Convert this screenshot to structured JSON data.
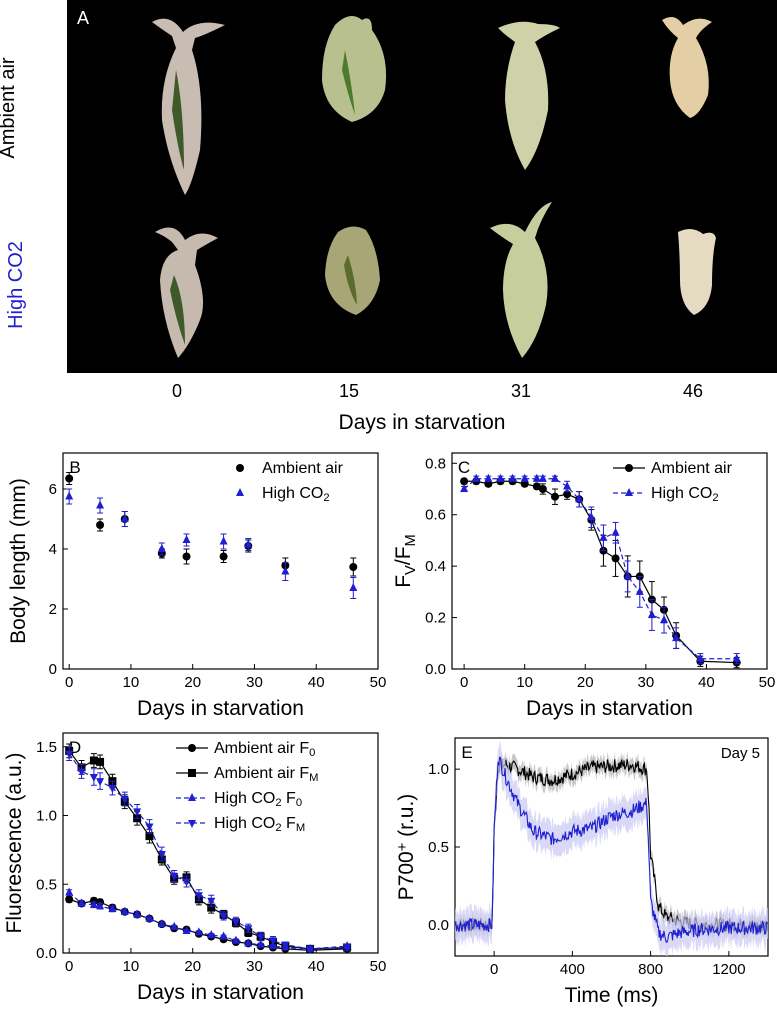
{
  "panel_a": {
    "label": "A",
    "row_labels": [
      "Ambient air",
      "High CO2"
    ],
    "row_label_colors": [
      "#000000",
      "#1f1fd1"
    ],
    "day_labels": [
      "0",
      "15",
      "31",
      "46"
    ],
    "xlabel": "Days in starvation"
  },
  "chart_data": [
    {
      "id": "B",
      "type": "scatter",
      "panel_label": "B",
      "xlabel": "Days in starvation",
      "ylabel": "Body length (mm)",
      "xlim": [
        -1,
        50
      ],
      "ylim": [
        0,
        7.2
      ],
      "xticks": [
        0,
        10,
        20,
        30,
        40,
        50
      ],
      "yticks": [
        0,
        2,
        4,
        6
      ],
      "legend": [
        {
          "label": "Ambient air",
          "marker": "circle",
          "color": "#000000"
        },
        {
          "label": "High CO2",
          "marker": "triangle-up",
          "color": "#1f1fd1"
        }
      ],
      "series": [
        {
          "name": "Ambient air",
          "marker": "circle",
          "color": "#000000",
          "x": [
            0,
            5,
            9,
            15,
            19,
            25,
            29,
            35,
            46
          ],
          "y": [
            6.35,
            4.8,
            5.0,
            3.85,
            3.75,
            3.75,
            4.1,
            3.45,
            3.4
          ],
          "err": [
            0.2,
            0.2,
            0.25,
            0.15,
            0.25,
            0.2,
            0.2,
            0.25,
            0.3
          ]
        },
        {
          "name": "High CO2",
          "marker": "triangle-up",
          "color": "#1f1fd1",
          "x": [
            0,
            5,
            9,
            15,
            19,
            25,
            29,
            35,
            46
          ],
          "y": [
            5.75,
            5.45,
            5.0,
            4.0,
            4.3,
            4.25,
            4.15,
            3.25,
            2.7
          ],
          "err": [
            0.25,
            0.25,
            0.25,
            0.2,
            0.2,
            0.25,
            0.2,
            0.3,
            0.35
          ]
        }
      ]
    },
    {
      "id": "C",
      "type": "line",
      "panel_label": "C",
      "xlabel": "Days in starvation",
      "ylabel": "FV/FM",
      "xlim": [
        -2,
        50
      ],
      "ylim": [
        0,
        0.84
      ],
      "xticks": [
        0,
        10,
        20,
        30,
        40,
        50
      ],
      "yticks": [
        0.0,
        0.2,
        0.4,
        0.6,
        0.8
      ],
      "ytick_labels": [
        "0.0",
        "0.2",
        "0.4",
        "0.6",
        "0.8"
      ],
      "legend": [
        {
          "label": "Ambient air",
          "marker": "circle",
          "color": "#000000",
          "dash": false
        },
        {
          "label": "High CO2",
          "marker": "triangle-up",
          "color": "#1f1fd1",
          "dash": true
        }
      ],
      "series": [
        {
          "name": "Ambient air",
          "marker": "circle",
          "color": "#000000",
          "dash": false,
          "x": [
            0,
            2,
            4,
            6,
            8,
            10,
            12,
            13,
            15,
            17,
            19,
            21,
            23,
            25,
            27,
            29,
            31,
            33,
            35,
            39,
            45
          ],
          "y": [
            0.73,
            0.73,
            0.72,
            0.73,
            0.73,
            0.72,
            0.71,
            0.7,
            0.67,
            0.68,
            0.66,
            0.58,
            0.46,
            0.43,
            0.36,
            0.36,
            0.27,
            0.23,
            0.13,
            0.03,
            0.025
          ],
          "err": [
            0.01,
            0.01,
            0.01,
            0.01,
            0.01,
            0.01,
            0.01,
            0.02,
            0.03,
            0.02,
            0.03,
            0.04,
            0.06,
            0.07,
            0.08,
            0.06,
            0.07,
            0.05,
            0.05,
            0.02,
            0.02
          ]
        },
        {
          "name": "High CO2",
          "marker": "triangle-up",
          "color": "#1f1fd1",
          "dash": true,
          "x": [
            0,
            2,
            4,
            6,
            8,
            10,
            12,
            13,
            15,
            17,
            19,
            21,
            23,
            25,
            27,
            29,
            31,
            33,
            35,
            39,
            45
          ],
          "y": [
            0.7,
            0.74,
            0.74,
            0.74,
            0.74,
            0.74,
            0.74,
            0.74,
            0.74,
            0.71,
            0.66,
            0.59,
            0.51,
            0.53,
            0.36,
            0.3,
            0.21,
            0.19,
            0.12,
            0.04,
            0.04
          ],
          "err": [
            0.01,
            0.01,
            0.01,
            0.01,
            0.01,
            0.01,
            0.01,
            0.01,
            0.01,
            0.02,
            0.03,
            0.04,
            0.05,
            0.04,
            0.06,
            0.06,
            0.06,
            0.05,
            0.04,
            0.02,
            0.02
          ]
        }
      ]
    },
    {
      "id": "D",
      "type": "line",
      "panel_label": "D",
      "xlabel": "Days in starvation",
      "ylabel": "Fluorescence (a.u.)",
      "xlim": [
        -1,
        50
      ],
      "ylim": [
        0,
        1.6
      ],
      "xticks": [
        0,
        10,
        20,
        30,
        40,
        50
      ],
      "yticks": [
        0.0,
        0.5,
        1.0,
        1.5
      ],
      "ytick_labels": [
        "0.0",
        "0.5",
        "1.0",
        "1.5"
      ],
      "legend": [
        {
          "label": "Ambient air F0",
          "marker": "circle",
          "color": "#000000",
          "dash": false
        },
        {
          "label": "Ambient air FM",
          "marker": "square",
          "color": "#000000",
          "dash": false
        },
        {
          "label": "High CO2 F0",
          "marker": "triangle-up",
          "color": "#1f1fd1",
          "dash": true
        },
        {
          "label": "High CO2 FM",
          "marker": "triangle-down",
          "color": "#1f1fd1",
          "dash": true
        }
      ],
      "series": [
        {
          "name": "Ambient air F0",
          "marker": "circle",
          "color": "#000000",
          "dash": false,
          "x": [
            0,
            2,
            4,
            5,
            7,
            9,
            11,
            13,
            15,
            17,
            19,
            21,
            23,
            25,
            27,
            29,
            31,
            33,
            35,
            39,
            45
          ],
          "y": [
            0.39,
            0.36,
            0.38,
            0.37,
            0.33,
            0.3,
            0.28,
            0.25,
            0.21,
            0.18,
            0.17,
            0.14,
            0.12,
            0.1,
            0.08,
            0.07,
            0.05,
            0.04,
            0.03,
            0.02,
            0.03
          ],
          "err": [
            0.02,
            0.02,
            0.02,
            0.02,
            0.02,
            0.02,
            0.02,
            0.01,
            0.01,
            0.01,
            0.01,
            0.01,
            0.01,
            0.01,
            0.01,
            0.01,
            0.01,
            0.01,
            0.01,
            0.01,
            0.01
          ]
        },
        {
          "name": "Ambient air FM",
          "marker": "square",
          "color": "#000000",
          "dash": false,
          "x": [
            0,
            2,
            4,
            5,
            7,
            9,
            11,
            13,
            15,
            17,
            19,
            21,
            23,
            25,
            27,
            29,
            31,
            33,
            35,
            39,
            45
          ],
          "y": [
            1.47,
            1.35,
            1.4,
            1.39,
            1.25,
            1.1,
            0.98,
            0.85,
            0.68,
            0.54,
            0.55,
            0.39,
            0.33,
            0.28,
            0.22,
            0.15,
            0.12,
            0.08,
            0.05,
            0.03,
            0.04
          ],
          "err": [
            0.05,
            0.05,
            0.05,
            0.05,
            0.05,
            0.05,
            0.05,
            0.05,
            0.04,
            0.04,
            0.04,
            0.04,
            0.04,
            0.03,
            0.03,
            0.03,
            0.03,
            0.03,
            0.02,
            0.02,
            0.02
          ]
        },
        {
          "name": "High CO2 F0",
          "marker": "triangle-up",
          "color": "#1f1fd1",
          "dash": true,
          "x": [
            0,
            2,
            4,
            5,
            7,
            9,
            11,
            13,
            15,
            17,
            19,
            21,
            23,
            25,
            27,
            29,
            31,
            33,
            35,
            39,
            45
          ],
          "y": [
            0.44,
            0.36,
            0.35,
            0.34,
            0.32,
            0.3,
            0.28,
            0.25,
            0.21,
            0.19,
            0.16,
            0.15,
            0.13,
            0.12,
            0.09,
            0.07,
            0.06,
            0.05,
            0.04,
            0.03,
            0.05
          ],
          "err": [
            0.02,
            0.02,
            0.02,
            0.02,
            0.02,
            0.02,
            0.02,
            0.01,
            0.01,
            0.01,
            0.01,
            0.01,
            0.01,
            0.01,
            0.01,
            0.01,
            0.01,
            0.01,
            0.01,
            0.01,
            0.01
          ]
        },
        {
          "name": "High CO2 FM",
          "marker": "triangle-down",
          "color": "#1f1fd1",
          "dash": true,
          "x": [
            0,
            2,
            4,
            5,
            7,
            9,
            11,
            13,
            15,
            17,
            19,
            21,
            23,
            25,
            27,
            29,
            31,
            33,
            35,
            39,
            45
          ],
          "y": [
            1.45,
            1.32,
            1.28,
            1.25,
            1.2,
            1.12,
            1.03,
            0.92,
            0.72,
            0.56,
            0.52,
            0.42,
            0.38,
            0.27,
            0.23,
            0.18,
            0.12,
            0.09,
            0.06,
            0.03,
            0.04
          ],
          "err": [
            0.05,
            0.05,
            0.06,
            0.06,
            0.05,
            0.05,
            0.05,
            0.05,
            0.05,
            0.04,
            0.04,
            0.04,
            0.04,
            0.03,
            0.03,
            0.03,
            0.03,
            0.03,
            0.02,
            0.02,
            0.02
          ]
        }
      ]
    },
    {
      "id": "E",
      "type": "line",
      "panel_label": "E",
      "annotation": "Day 5",
      "xlabel": "Time (ms)",
      "ylabel": "P700+ (r.u.)",
      "xlim": [
        -200,
        1400
      ],
      "ylim": [
        -0.2,
        1.2
      ],
      "xticks": [
        0,
        400,
        800,
        1200
      ],
      "yticks": [
        0.0,
        0.5,
        1.0
      ],
      "ytick_labels": [
        "0.0",
        "0.5",
        "1.0"
      ],
      "series": [
        {
          "name": "Ambient air",
          "color": "#000000",
          "band_color": "#b0b0b0",
          "x": [
            -200,
            -10,
            0,
            20,
            60,
            120,
            200,
            300,
            400,
            500,
            600,
            700,
            780,
            790,
            800,
            840,
            880,
            950,
            1050,
            1200,
            1400
          ],
          "y": [
            0.0,
            0.0,
            0.6,
            1.02,
            1.03,
            1.0,
            0.95,
            0.93,
            0.97,
            1.01,
            1.02,
            1.03,
            1.0,
            0.8,
            0.45,
            0.12,
            0.05,
            0.02,
            0.0,
            0.0,
            -0.01
          ],
          "band": 0.05
        },
        {
          "name": "High CO2",
          "color": "#1f1fd1",
          "band_color": "#c9c9f3",
          "x": [
            -200,
            -10,
            0,
            20,
            60,
            120,
            200,
            300,
            400,
            500,
            600,
            700,
            780,
            790,
            800,
            840,
            880,
            950,
            1050,
            1200,
            1400
          ],
          "y": [
            0.0,
            0.0,
            0.6,
            1.08,
            0.95,
            0.78,
            0.6,
            0.55,
            0.6,
            0.62,
            0.7,
            0.73,
            0.78,
            0.5,
            0.15,
            -0.05,
            -0.08,
            -0.05,
            -0.03,
            -0.02,
            -0.02
          ],
          "band": 0.1
        }
      ]
    }
  ]
}
